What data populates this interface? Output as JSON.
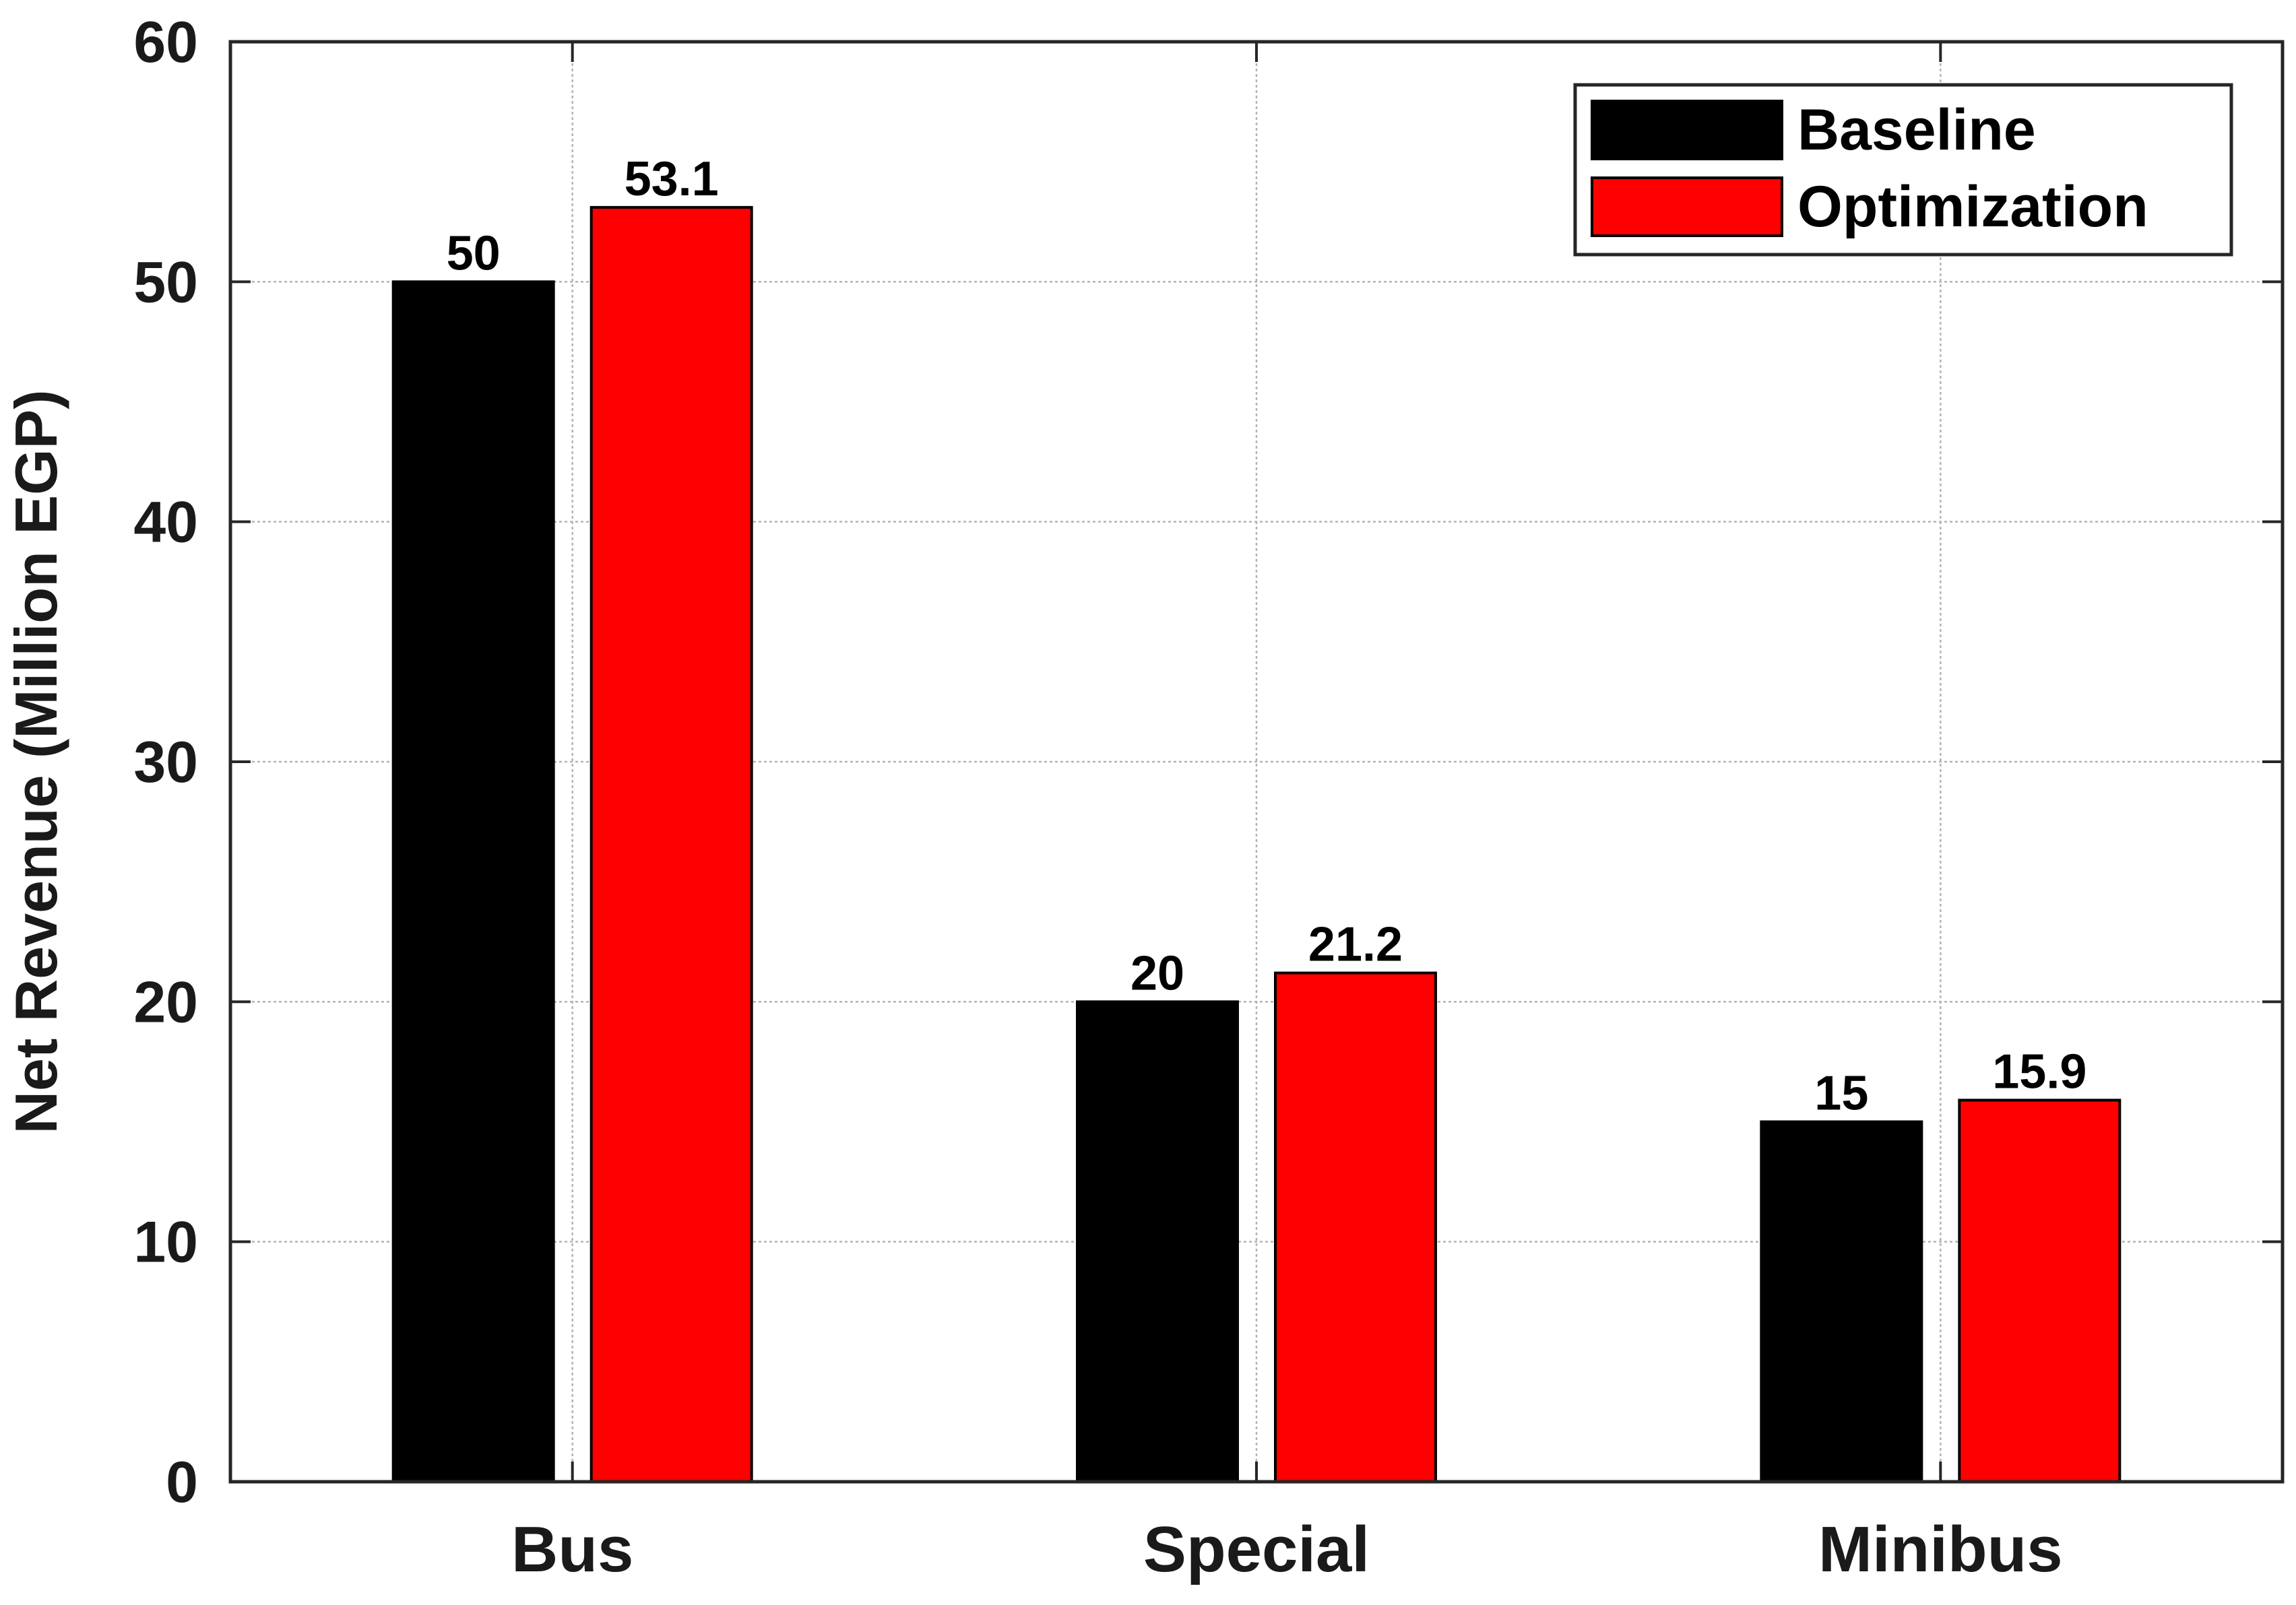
{
  "chart_data": {
    "type": "bar",
    "title": "",
    "xlabel": "",
    "ylabel": "Net Revenue (Million EGP)",
    "categories": [
      "Bus",
      "Special",
      "Minibus"
    ],
    "series": [
      {
        "name": "Baseline",
        "color": "#000000",
        "values": [
          50,
          20,
          15
        ],
        "data_labels": [
          "50",
          "20",
          "15"
        ]
      },
      {
        "name": "Optimization",
        "color": "#ff0000",
        "values": [
          53.1,
          21.2,
          15.9
        ],
        "data_labels": [
          "53.1",
          "21.2",
          "15.9"
        ]
      }
    ],
    "ylim": [
      0,
      60
    ],
    "yticks": [
      0,
      10,
      20,
      30,
      40,
      50,
      60
    ],
    "ytick_labels": [
      "0",
      "10",
      "20",
      "30",
      "40",
      "50",
      "60"
    ],
    "grid": true,
    "legend": "top-right"
  }
}
